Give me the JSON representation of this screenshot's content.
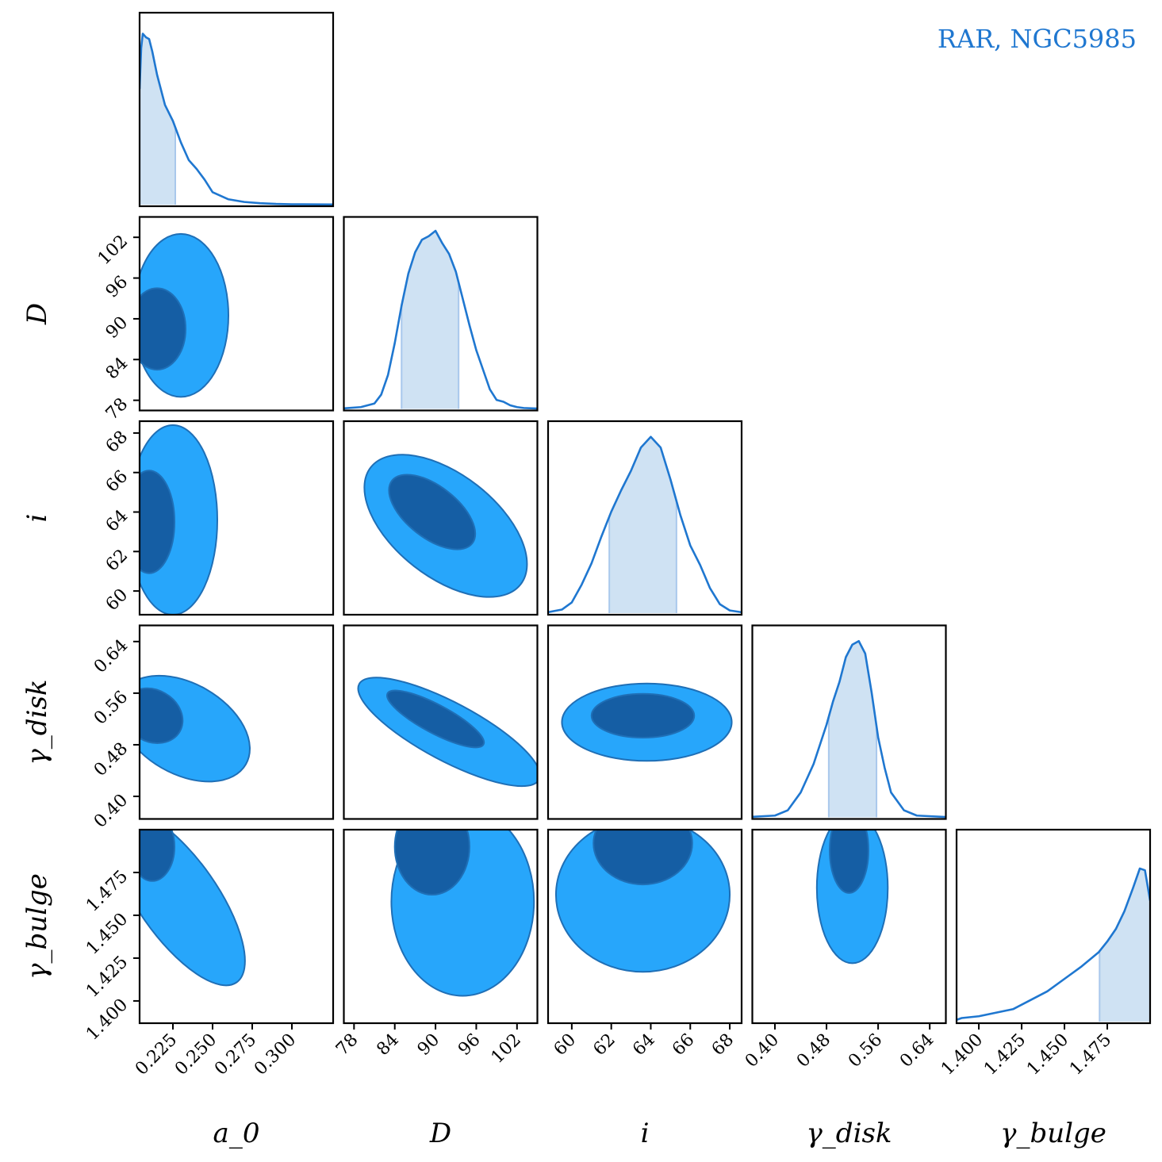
{
  "title": "RAR, NGC5985",
  "colors": {
    "line": "#1f77d0",
    "band": "#cfe2f3",
    "band_edge": "#a9c8ec",
    "outer": "#27a6fb",
    "inner": "#155ea4",
    "edge": "#1f6fb6"
  },
  "chart_data": {
    "type": "corner",
    "params": [
      {
        "key": "a0",
        "label": "a_0",
        "range": [
          0.204,
          0.326
        ],
        "ticks": [
          0.225,
          0.25,
          0.275,
          0.3
        ],
        "tick_labels": [
          "0.225",
          "0.250",
          "0.275",
          "0.300"
        ]
      },
      {
        "key": "D",
        "label": "D",
        "range": [
          76.5,
          105
        ],
        "ticks": [
          78,
          84,
          90,
          96,
          102
        ],
        "tick_labels": [
          "78",
          "84",
          "90",
          "96",
          "102"
        ]
      },
      {
        "key": "i",
        "label": "i",
        "range": [
          58.8,
          68.6
        ],
        "ticks": [
          60,
          62,
          64,
          66,
          68
        ],
        "tick_labels": [
          "60",
          "62",
          "64",
          "66",
          "68"
        ]
      },
      {
        "key": "gdisk",
        "label": "γ_disk",
        "range": [
          0.365,
          0.665
        ],
        "ticks": [
          0.4,
          0.48,
          0.56,
          0.64
        ],
        "tick_labels": [
          "0.40",
          "0.48",
          "0.56",
          "0.64"
        ]
      },
      {
        "key": "gbulge",
        "label": "γ_bulge",
        "range": [
          1.387,
          1.5
        ],
        "ticks": [
          1.4,
          1.425,
          1.45,
          1.475
        ],
        "tick_labels": [
          "1.400",
          "1.425",
          "1.450",
          "1.475"
        ]
      }
    ],
    "marginals": [
      {
        "param": "a0",
        "x": [
          0.204,
          0.205,
          0.206,
          0.208,
          0.21,
          0.212,
          0.215,
          0.22,
          0.225,
          0.23,
          0.235,
          0.24,
          0.245,
          0.25,
          0.255,
          0.26,
          0.27,
          0.28,
          0.29,
          0.3,
          0.326
        ],
        "y": [
          0.65,
          0.88,
          0.96,
          0.94,
          0.93,
          0.86,
          0.73,
          0.56,
          0.47,
          0.35,
          0.25,
          0.2,
          0.14,
          0.07,
          0.05,
          0.03,
          0.015,
          0.008,
          0.004,
          0.002,
          0.001
        ],
        "band": [
          0.204,
          0.2265
        ]
      },
      {
        "param": "D",
        "x": [
          76.5,
          79,
          81,
          82,
          83,
          84,
          85,
          86,
          87,
          88,
          89,
          90,
          91,
          92,
          93,
          94,
          95,
          96,
          97,
          98,
          99,
          100,
          101,
          102,
          103,
          105
        ],
        "y": [
          0.003,
          0.01,
          0.03,
          0.08,
          0.19,
          0.37,
          0.58,
          0.76,
          0.88,
          0.95,
          0.97,
          1.0,
          0.93,
          0.87,
          0.77,
          0.62,
          0.47,
          0.33,
          0.22,
          0.11,
          0.05,
          0.04,
          0.02,
          0.01,
          0.005,
          0.002
        ],
        "band": [
          85.0,
          93.4
        ]
      },
      {
        "param": "i",
        "x": [
          58.8,
          59.5,
          60,
          60.5,
          61,
          61.5,
          62,
          62.5,
          63,
          63.5,
          64,
          64.5,
          65,
          65.5,
          66,
          66.5,
          67,
          67.5,
          68,
          68.6
        ],
        "y": [
          0.005,
          0.02,
          0.06,
          0.16,
          0.28,
          0.43,
          0.57,
          0.69,
          0.8,
          0.93,
          0.99,
          0.93,
          0.75,
          0.55,
          0.38,
          0.27,
          0.14,
          0.05,
          0.015,
          0.005
        ],
        "band": [
          61.9,
          65.3
        ]
      },
      {
        "param": "gdisk",
        "x": [
          0.365,
          0.4,
          0.42,
          0.44,
          0.46,
          0.48,
          0.49,
          0.5,
          0.51,
          0.52,
          0.53,
          0.54,
          0.55,
          0.56,
          0.57,
          0.58,
          0.6,
          0.62,
          0.665
        ],
        "y": [
          0.003,
          0.01,
          0.04,
          0.14,
          0.3,
          0.52,
          0.65,
          0.76,
          0.9,
          0.97,
          0.99,
          0.92,
          0.7,
          0.45,
          0.28,
          0.14,
          0.04,
          0.01,
          0.002
        ],
        "band": [
          0.4835,
          0.5575
        ]
      },
      {
        "param": "gbulge",
        "x": [
          1.387,
          1.39,
          1.4,
          1.41,
          1.42,
          1.43,
          1.44,
          1.45,
          1.46,
          1.47,
          1.475,
          1.48,
          1.485,
          1.49,
          1.494,
          1.497,
          1.5
        ],
        "y": [
          0.01,
          0.02,
          0.03,
          0.05,
          0.07,
          0.12,
          0.17,
          0.24,
          0.31,
          0.39,
          0.45,
          0.52,
          0.62,
          0.75,
          0.86,
          0.85,
          0.68
        ],
        "band": [
          1.4705,
          1.5
        ]
      }
    ],
    "pairs": [
      {
        "x": "a0",
        "y": "D",
        "outer": {
          "cx": 0.23,
          "cy": 90.5,
          "rx": 0.03,
          "ry": 12.0,
          "rot": 0
        },
        "inner": {
          "cx": 0.215,
          "cy": 88.5,
          "rx": 0.018,
          "ry": 6.0,
          "rot": 0
        }
      },
      {
        "x": "a0",
        "y": "i",
        "outer": {
          "cx": 0.225,
          "cy": 63.6,
          "rx": 0.028,
          "ry": 4.8,
          "rot": 0
        },
        "inner": {
          "cx": 0.21,
          "cy": 63.5,
          "rx": 0.016,
          "ry": 2.6,
          "rot": 0
        }
      },
      {
        "x": "a0",
        "y": "gdisk",
        "outer": {
          "cx": 0.232,
          "cy": 0.505,
          "rx": 0.045,
          "ry": 0.07,
          "rot": 30
        },
        "inner": {
          "cx": 0.212,
          "cy": 0.525,
          "rx": 0.02,
          "ry": 0.04,
          "rot": 30
        }
      },
      {
        "x": "a0",
        "y": "gbulge",
        "outer": {
          "cx": 0.228,
          "cy": 1.46,
          "rx": 0.025,
          "ry": 0.06,
          "rot": -35
        },
        "inner": {
          "cx": 0.212,
          "cy": 1.49,
          "rx": 0.014,
          "ry": 0.02,
          "rot": 0
        }
      },
      {
        "x": "D",
        "y": "i",
        "outer": {
          "cx": 91.5,
          "cy": 63.3,
          "rx": 14.0,
          "ry": 2.6,
          "rot": 38
        },
        "inner": {
          "cx": 89.5,
          "cy": 64.0,
          "rx": 7.5,
          "ry": 1.3,
          "rot": 38
        }
      },
      {
        "x": "D",
        "y": "gdisk",
        "outer": {
          "cx": 92.0,
          "cy": 0.5,
          "rx": 15.0,
          "ry": 0.045,
          "rot": 28
        },
        "inner": {
          "cx": 90.0,
          "cy": 0.52,
          "rx": 8.0,
          "ry": 0.022,
          "rot": 28
        }
      },
      {
        "x": "D",
        "y": "gbulge",
        "outer": {
          "cx": 94.0,
          "cy": 1.458,
          "rx": 10.5,
          "ry": 0.055,
          "rot": 0
        },
        "inner": {
          "cx": 89.5,
          "cy": 1.49,
          "rx": 5.5,
          "ry": 0.028,
          "rot": 0
        }
      },
      {
        "x": "i",
        "y": "gdisk",
        "outer": {
          "cx": 63.8,
          "cy": 0.515,
          "rx": 4.3,
          "ry": 0.06,
          "rot": 0
        },
        "inner": {
          "cx": 63.6,
          "cy": 0.525,
          "rx": 2.6,
          "ry": 0.034,
          "rot": 0
        }
      },
      {
        "x": "i",
        "y": "gbulge",
        "outer": {
          "cx": 63.6,
          "cy": 1.462,
          "rx": 4.4,
          "ry": 0.045,
          "rot": 0
        },
        "inner": {
          "cx": 63.6,
          "cy": 1.492,
          "rx": 2.5,
          "ry": 0.024,
          "rot": 0
        }
      },
      {
        "x": "gdisk",
        "y": "gbulge",
        "outer": {
          "cx": 0.52,
          "cy": 1.466,
          "rx": 0.055,
          "ry": 0.044,
          "rot": 0
        },
        "inner": {
          "cx": 0.515,
          "cy": 1.488,
          "rx": 0.03,
          "ry": 0.025,
          "rot": 0
        }
      }
    ]
  }
}
